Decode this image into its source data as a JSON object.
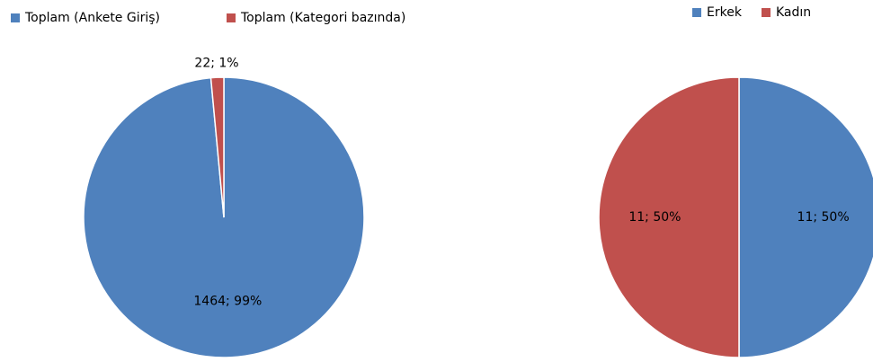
{
  "chart_data": [
    {
      "type": "pie",
      "categories": [
        "Toplam (Ankete Giriş)",
        "Toplam (Kategori bazında)"
      ],
      "values": [
        1464,
        22
      ],
      "value_labels": [
        "1464; 99%",
        "22; 1%"
      ],
      "colors": [
        "#4f81bd",
        "#c0504d"
      ]
    },
    {
      "type": "pie",
      "categories": [
        "Erkek",
        "Kadın"
      ],
      "values": [
        11,
        11
      ],
      "value_labels": [
        "11; 50%",
        "11; 50%"
      ],
      "colors": [
        "#4f81bd",
        "#c0504d"
      ]
    }
  ]
}
